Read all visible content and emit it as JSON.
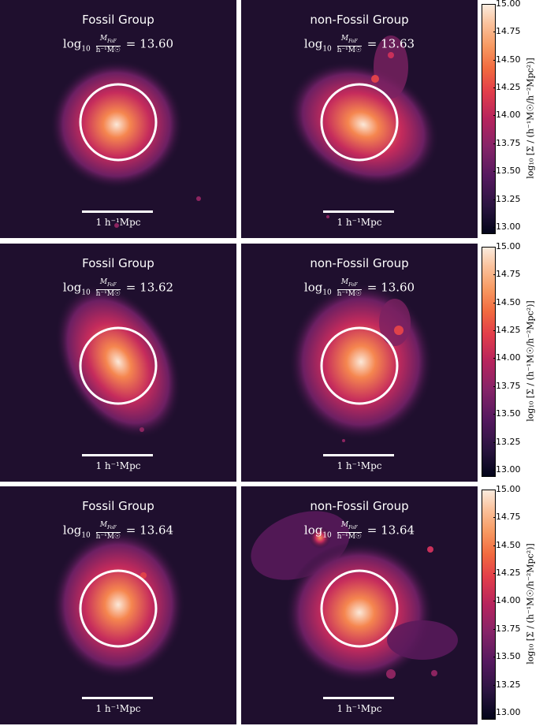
{
  "panels": [
    {
      "title": "Fossil Group",
      "mass": "13.60"
    },
    {
      "title": "non-Fossil Group",
      "mass": "13.63"
    },
    {
      "title": "Fossil Group",
      "mass": "13.62"
    },
    {
      "title": "non-Fossil Group",
      "mass": "13.60"
    },
    {
      "title": "Fossil Group",
      "mass": "13.64"
    },
    {
      "title": "non-Fossil Group",
      "mass": "13.64"
    }
  ],
  "mass_label": {
    "prefix": "log",
    "sub": "10",
    "num": "M",
    "num_sub": "FoF",
    "den": "h⁻¹M☉",
    "eq": "="
  },
  "scale_label": "1 h⁻¹Mpc",
  "colorbar": {
    "ticks": [
      "15.00",
      "14.75",
      "14.50",
      "14.25",
      "14.00",
      "13.75",
      "13.50",
      "13.25",
      "13.00"
    ],
    "label": "log₁₀ [Σ / (h⁻¹M☉/h⁻²Mpc²)]",
    "range": [
      12.95,
      15.0
    ]
  }
}
